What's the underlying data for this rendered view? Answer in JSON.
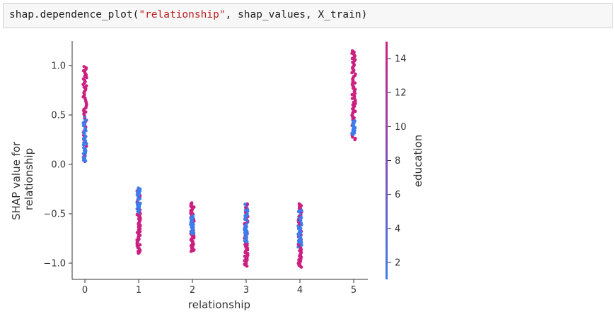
{
  "code_cell": {
    "prefix": "shap.dependence_plot(",
    "string_arg": "\"relationship\"",
    "suffix": ", shap_values, X_train)"
  },
  "chart_data": {
    "type": "scatter",
    "xlabel": "relationship",
    "ylabel": [
      "SHAP value for",
      "relationship"
    ],
    "x_ticks": [
      0,
      1,
      2,
      3,
      4,
      5
    ],
    "y_ticks": [
      -1.0,
      -0.5,
      0.0,
      0.5,
      1.0
    ],
    "xlim": [
      -0.25,
      5.25
    ],
    "ylim": [
      -1.15,
      1.25
    ],
    "colorbar": {
      "label": "education",
      "ticks": [
        2,
        4,
        6,
        8,
        10,
        12,
        14
      ],
      "range": [
        1,
        15
      ],
      "colors": [
        "#3b7ded",
        "#cc2080"
      ]
    },
    "series": [
      {
        "x": 0,
        "y_range": [
          0.03,
          0.99
        ],
        "blue_y_range": [
          0.03,
          0.5
        ]
      },
      {
        "x": 1,
        "y_range": [
          -0.9,
          -0.24
        ],
        "blue_y_range": [
          -0.5,
          -0.24
        ]
      },
      {
        "x": 2,
        "y_range": [
          -0.88,
          -0.39
        ],
        "blue_y_range": [
          -0.7,
          -0.5
        ]
      },
      {
        "x": 3,
        "y_range": [
          -1.03,
          -0.4
        ],
        "blue_y_range": [
          -0.8,
          -0.4
        ]
      },
      {
        "x": 4,
        "y_range": [
          -1.04,
          -0.4
        ],
        "blue_y_range": [
          -0.85,
          -0.45
        ]
      },
      {
        "x": 5,
        "y_range": [
          0.25,
          1.15
        ],
        "blue_y_range": [
          0.3,
          0.45
        ]
      }
    ]
  }
}
